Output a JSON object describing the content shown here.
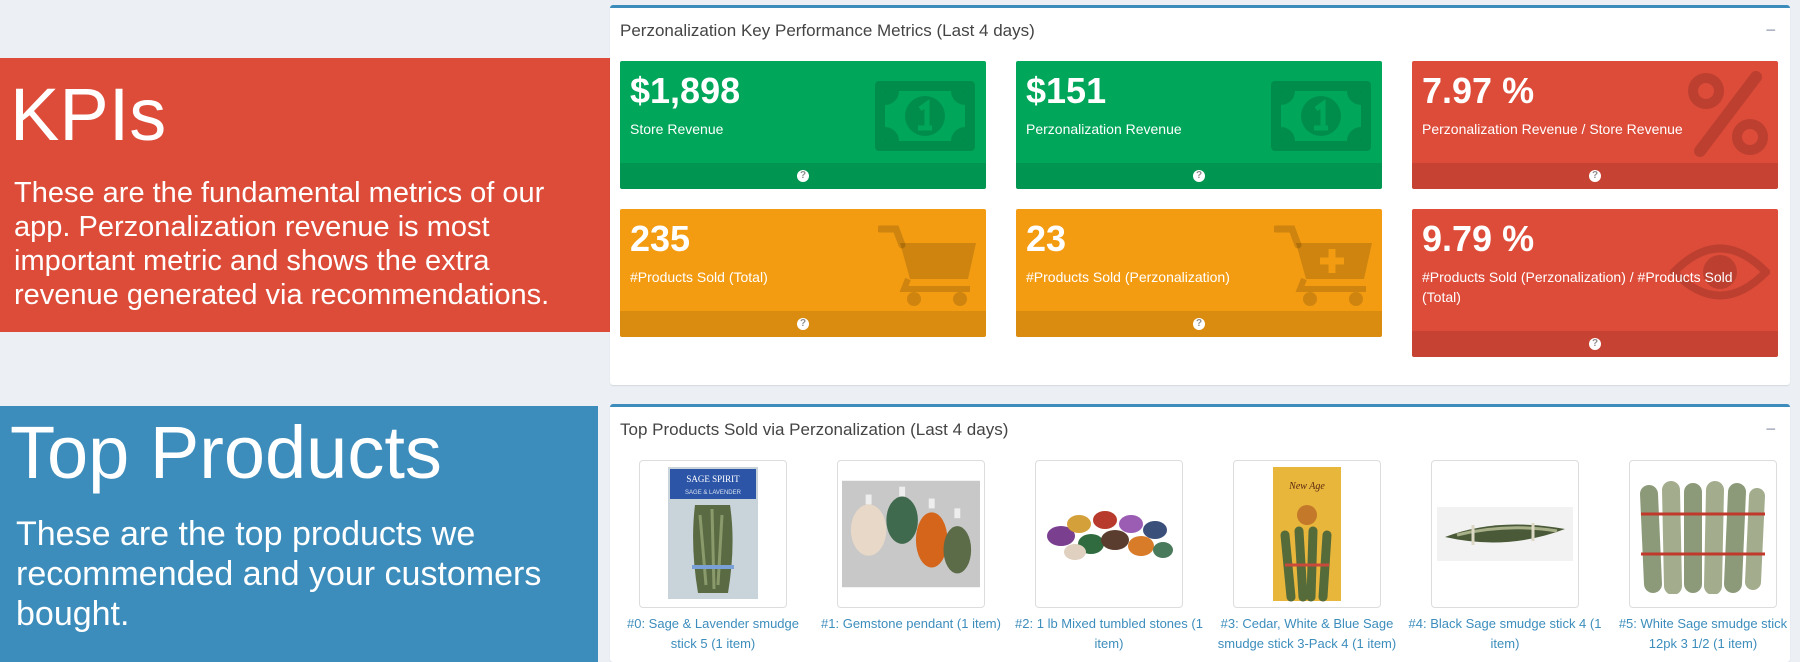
{
  "kpi_banner": {
    "title": "KPIs",
    "text": "These are the fundamental metrics of our app. Perzonalization revenue is most important metric and shows the extra revenue generated via recommendations."
  },
  "products_banner": {
    "title": "Top Products",
    "text": "These are the top products we recommended and your customers bought."
  },
  "kpi_box": {
    "title": "Perzonalization Key Performance Metrics (Last 4 days)",
    "collapse_label": "−",
    "cards": [
      {
        "value": "$1,898",
        "label": "Store Revenue",
        "color": "#00a65a",
        "icon": "money-icon"
      },
      {
        "value": "$151",
        "label": "Perzonalization Revenue",
        "color": "#00a65a",
        "icon": "money-icon"
      },
      {
        "value": "7.97",
        "unit": "%",
        "label": "Perzonalization Revenue / Store Revenue",
        "color": "#dd4b39",
        "icon": "percent-icon"
      },
      {
        "value": "235",
        "label": "#Products Sold (Total)",
        "color": "#f39c12",
        "icon": "cart-icon"
      },
      {
        "value": "23",
        "label": "#Products Sold (Perzonalization)",
        "color": "#f39c12",
        "icon": "cart-plus-icon"
      },
      {
        "value": "9.79",
        "unit": "%",
        "label": "#Products Sold (Perzonalization) / #Products Sold (Total)",
        "color": "#dd4b39",
        "icon": "eye-icon"
      }
    ],
    "help_glyph": "?"
  },
  "products_box": {
    "title": "Top Products Sold via Perzonalization (Last 4 days)",
    "collapse_label": "−",
    "products": [
      {
        "label": "#0: Sage & Lavender smudge stick 5 (1 item)",
        "package_text_1": "SAGE SPIRIT",
        "package_text_2": "SAGE & LAVENDER"
      },
      {
        "label": "#1: Gemstone pendant (1 item)"
      },
      {
        "label": "#2: 1 lb Mixed tumbled stones (1 item)"
      },
      {
        "label": "#3: Cedar, White & Blue Sage smudge stick 3-Pack 4 (1 item)",
        "package_text": "New Age"
      },
      {
        "label": "#4: Black Sage smudge stick 4 (1 item)"
      },
      {
        "label": "#5: White Sage smudge stick 12pk 3 1/2 (1 item)"
      }
    ]
  }
}
